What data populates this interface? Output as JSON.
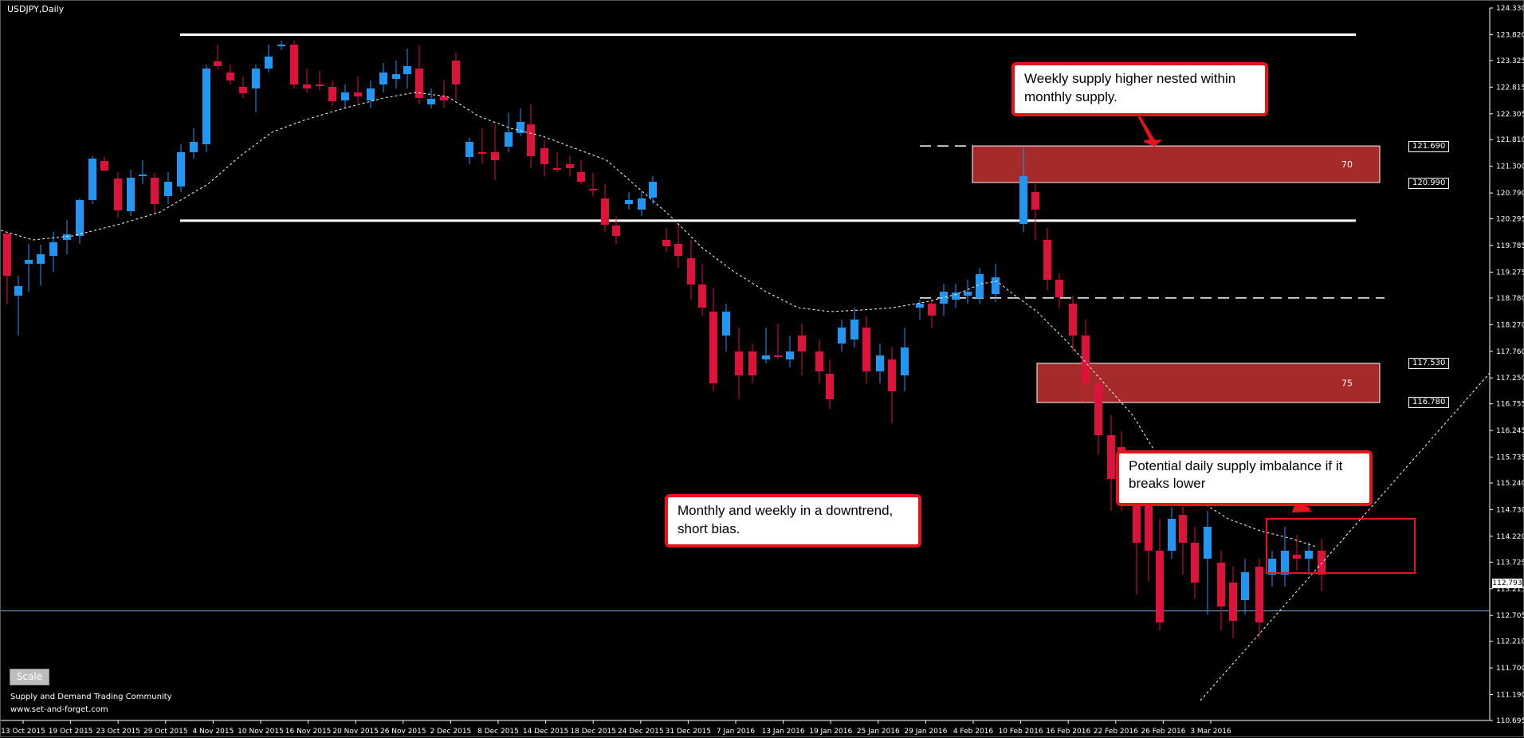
{
  "window": {
    "title": "USDJPY,Daily"
  },
  "colors": {
    "bull": "#2196f3",
    "bear": "#dc143c",
    "zone": "#a52a2a",
    "grid": "#ffffff",
    "callout_border": "#e8141c"
  },
  "watermark": {
    "line1": "Supply and Demand Trading Community",
    "line2": "www.set-and-forget.com"
  },
  "scale_button": "Scale",
  "current_price": "112.793",
  "zone_labels": {
    "upper": "70",
    "lower": "75"
  },
  "price_tags": [
    "121.690",
    "120.990",
    "117.530",
    "116.780"
  ],
  "callouts": {
    "weekly": "Weekly supply higher nested within monthly supply.",
    "daily": "Potential daily supply imbalance if it breaks lower",
    "monthly": "Monthly and weekly in a downtrend, short bias."
  },
  "chart_data": {
    "type": "candlestick",
    "symbol": "USDJPY",
    "timeframe": "Daily",
    "y_ticks": [
      "124.330",
      "123.820",
      "123.325",
      "122.815",
      "122.305",
      "121.810",
      "121.300",
      "120.790",
      "120.295",
      "119.785",
      "119.275",
      "118.780",
      "118.270",
      "117.760",
      "117.250",
      "116.755",
      "116.245",
      "115.735",
      "115.240",
      "114.730",
      "114.220",
      "113.725",
      "113.215",
      "112.705",
      "112.210",
      "111.700",
      "111.190",
      "110.695"
    ],
    "x_ticks": [
      "13 Oct 2015",
      "19 Oct 2015",
      "23 Oct 2015",
      "29 Oct 2015",
      "4 Nov 2015",
      "10 Nov 2015",
      "16 Nov 2015",
      "20 Nov 2015",
      "26 Nov 2015",
      "2 Dec 2015",
      "8 Dec 2015",
      "14 Dec 2015",
      "18 Dec 2015",
      "24 Dec 2015",
      "31 Dec 2015",
      "7 Jan 2016",
      "13 Jan 2016",
      "19 Jan 2016",
      "25 Jan 2016",
      "29 Jan 2016",
      "4 Feb 2016",
      "10 Feb 2016",
      "16 Feb 2016",
      "22 Feb 2016",
      "26 Feb 2016",
      "3 Mar 2016"
    ],
    "ylim": [
      110.695,
      124.33
    ],
    "horizontal_levels": [
      123.82,
      120.26
    ],
    "dashed_levels": [
      121.69,
      118.78
    ],
    "supply_zones": [
      {
        "high": 121.69,
        "low": 120.99,
        "label": "70"
      },
      {
        "high": 117.53,
        "low": 116.78,
        "label": "75"
      }
    ],
    "current_price": 112.793
  }
}
